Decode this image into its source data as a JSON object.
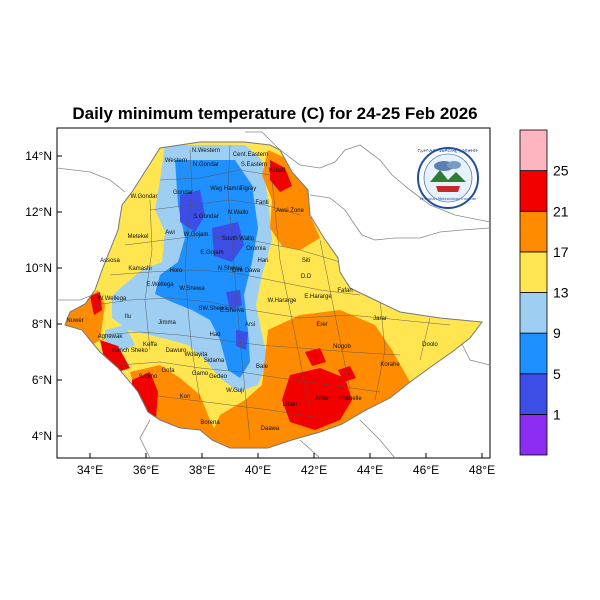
{
  "title": "Daily minimum temperature (C) for 24-25 Feb 2026",
  "map": {
    "lat_ticks": [
      "14°N",
      "12°N",
      "10°N",
      "8°N",
      "6°N",
      "4°N"
    ],
    "lon_ticks": [
      "34°E",
      "36°E",
      "38°E",
      "40°E",
      "42°E",
      "44°E",
      "46°E",
      "48°E"
    ],
    "regions": [
      "Western",
      "N.Western",
      "Cent.",
      "Eastern",
      "N.Gondar",
      "S.Eastern",
      "Kilbati",
      "Gondar",
      "Wag Hamra",
      "Tigray",
      "W.Gondar",
      "S.Gondar",
      "N.Wallo",
      "Fanti",
      "Awsi Zone",
      "Metekel",
      "Awi",
      "W.Gojam",
      "South Wallo",
      "E.Gojam",
      "Oromia",
      "Hari",
      "Siti",
      "Assosa",
      "Kamashi",
      "Horo",
      "N.Shewa",
      "Dire Dawa",
      "D.D",
      "Fafan",
      "W.Wellega",
      "E.Wellega",
      "W.Shewa",
      "Jarar",
      "Ilu",
      "Jimma",
      "SW.Shewa",
      "E.Shewa",
      "W.Hararge",
      "E.Hararge",
      "Agnewak",
      "Bench Sheko",
      "Keffa",
      "Dawuro",
      "Erer",
      "Nogob",
      "Doolo",
      "Wolayita",
      "Arsi",
      "Bale",
      "Korahe",
      "Gofa",
      "Gamo",
      "Shabelle",
      "S.Omo",
      "Borena",
      "Liban",
      "Afder",
      "Daawa",
      "Kon",
      "Nuwer",
      "Gedeo",
      "Sidama",
      "Had",
      "W.Guji"
    ]
  },
  "colorbar": {
    "labels": [
      "25",
      "21",
      "17",
      "13",
      "9",
      "5",
      "1"
    ],
    "colors": [
      "#8b2cf0",
      "#3d4ee6",
      "#1e90ff",
      "#9ecff2",
      "#ffe54f",
      "#ff8c00",
      "#f20000",
      "#ffb5c0"
    ]
  },
  "logo": {
    "text_top": "የኢትዮጵያ ሜቴዎሮሎጂ ኢንስቲትዩት",
    "text_bottom": "Ethiopian Meteorology Institute"
  }
}
